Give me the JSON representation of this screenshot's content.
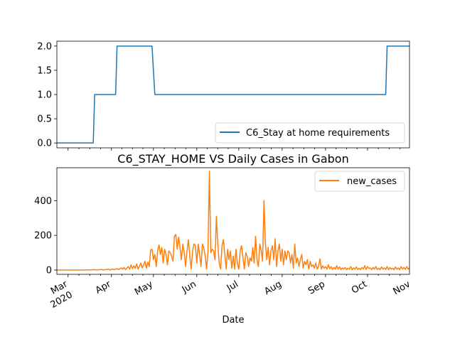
{
  "chart_data": [
    {
      "type": "line",
      "title": "",
      "xlabel": "",
      "ylabel": "",
      "x_range": [
        "2020-02-22",
        "2020-10-31"
      ],
      "ylim": [
        -0.1,
        2.1
      ],
      "yticks": [
        "0.0",
        "0.5",
        "1.0",
        "1.5",
        "2.0"
      ],
      "grid": false,
      "legend_position": "lower-right",
      "series": [
        {
          "name": "C6_Stay at home requirements",
          "color": "#1f77b4",
          "points": [
            [
              "2020-02-22",
              0
            ],
            [
              "2020-03-19",
              0
            ],
            [
              "2020-03-20",
              1
            ],
            [
              "2020-04-04",
              1
            ],
            [
              "2020-04-05",
              2
            ],
            [
              "2020-04-30",
              2
            ],
            [
              "2020-05-02",
              1
            ],
            [
              "2020-10-14",
              1
            ],
            [
              "2020-10-15",
              2
            ],
            [
              "2020-10-31",
              2
            ]
          ]
        }
      ]
    },
    {
      "type": "line",
      "title": "C6_STAY_HOME VS Daily Cases in Gabon",
      "xlabel": "Date",
      "ylabel": "",
      "x_range": [
        "2020-02-22",
        "2020-10-31"
      ],
      "ylim": [
        -25,
        590
      ],
      "yticks": [
        "0",
        "200",
        "400"
      ],
      "xticks": [
        {
          "date": "2020-03-01",
          "label": "Mar",
          "sublabel": "2020"
        },
        {
          "date": "2020-04-01",
          "label": "Apr"
        },
        {
          "date": "2020-05-01",
          "label": "May"
        },
        {
          "date": "2020-06-01",
          "label": "Jun"
        },
        {
          "date": "2020-07-01",
          "label": "Jul"
        },
        {
          "date": "2020-08-01",
          "label": "Aug"
        },
        {
          "date": "2020-09-01",
          "label": "Sep"
        },
        {
          "date": "2020-10-01",
          "label": "Oct"
        },
        {
          "date": "2020-11-01",
          "label": "Nov"
        }
      ],
      "grid": false,
      "legend_position": "upper-right",
      "series": [
        {
          "name": "new_cases",
          "color": "#ff7f0e",
          "points": [
            [
              "2020-02-22",
              0
            ],
            [
              "2020-03-05",
              0
            ],
            [
              "2020-03-12",
              0
            ],
            [
              "2020-03-15",
              1
            ],
            [
              "2020-03-16",
              0
            ],
            [
              "2020-03-20",
              2
            ],
            [
              "2020-03-21",
              0
            ],
            [
              "2020-03-25",
              3
            ],
            [
              "2020-03-26",
              0
            ],
            [
              "2020-03-30",
              5
            ],
            [
              "2020-03-31",
              0
            ],
            [
              "2020-04-02",
              6
            ],
            [
              "2020-04-03",
              2
            ],
            [
              "2020-04-05",
              8
            ],
            [
              "2020-04-06",
              3
            ],
            [
              "2020-04-08",
              12
            ],
            [
              "2020-04-09",
              5
            ],
            [
              "2020-04-10",
              15
            ],
            [
              "2020-04-11",
              2
            ],
            [
              "2020-04-13",
              20
            ],
            [
              "2020-04-14",
              5
            ],
            [
              "2020-04-15",
              30
            ],
            [
              "2020-04-16",
              8
            ],
            [
              "2020-04-17",
              25
            ],
            [
              "2020-04-18",
              10
            ],
            [
              "2020-04-19",
              35
            ],
            [
              "2020-04-20",
              5
            ],
            [
              "2020-04-22",
              40
            ],
            [
              "2020-04-23",
              12
            ],
            [
              "2020-04-24",
              30
            ],
            [
              "2020-04-25",
              50
            ],
            [
              "2020-04-26",
              10
            ],
            [
              "2020-04-27",
              45
            ],
            [
              "2020-04-28",
              20
            ],
            [
              "2020-04-29",
              115
            ],
            [
              "2020-04-30",
              120
            ],
            [
              "2020-05-01",
              60
            ],
            [
              "2020-05-02",
              90
            ],
            [
              "2020-05-03",
              20
            ],
            [
              "2020-05-04",
              110
            ],
            [
              "2020-05-05",
              145
            ],
            [
              "2020-05-06",
              90
            ],
            [
              "2020-05-07",
              130
            ],
            [
              "2020-05-08",
              40
            ],
            [
              "2020-05-09",
              120
            ],
            [
              "2020-05-10",
              90
            ],
            [
              "2020-05-11",
              30
            ],
            [
              "2020-05-12",
              110
            ],
            [
              "2020-05-13",
              100
            ],
            [
              "2020-05-14",
              80
            ],
            [
              "2020-05-15",
              50
            ],
            [
              "2020-05-16",
              195
            ],
            [
              "2020-05-17",
              205
            ],
            [
              "2020-05-18",
              120
            ],
            [
              "2020-05-19",
              190
            ],
            [
              "2020-05-20",
              130
            ],
            [
              "2020-05-21",
              60
            ],
            [
              "2020-05-22",
              150
            ],
            [
              "2020-05-23",
              100
            ],
            [
              "2020-05-24",
              20
            ],
            [
              "2020-05-25",
              110
            ],
            [
              "2020-05-26",
              175
            ],
            [
              "2020-05-27",
              80
            ],
            [
              "2020-05-28",
              5
            ],
            [
              "2020-05-29",
              110
            ],
            [
              "2020-05-30",
              150
            ],
            [
              "2020-05-31",
              140
            ],
            [
              "2020-06-01",
              40
            ],
            [
              "2020-06-02",
              150
            ],
            [
              "2020-06-03",
              90
            ],
            [
              "2020-06-04",
              20
            ],
            [
              "2020-06-05",
              150
            ],
            [
              "2020-06-06",
              130
            ],
            [
              "2020-06-07",
              80
            ],
            [
              "2020-06-08",
              5
            ],
            [
              "2020-06-09",
              110
            ],
            [
              "2020-06-10",
              570
            ],
            [
              "2020-06-11",
              100
            ],
            [
              "2020-06-12",
              120
            ],
            [
              "2020-06-13",
              110
            ],
            [
              "2020-06-14",
              60
            ],
            [
              "2020-06-15",
              310
            ],
            [
              "2020-06-16",
              150
            ],
            [
              "2020-06-17",
              40
            ],
            [
              "2020-06-18",
              5
            ],
            [
              "2020-06-19",
              140
            ],
            [
              "2020-06-20",
              175
            ],
            [
              "2020-06-21",
              90
            ],
            [
              "2020-06-22",
              5
            ],
            [
              "2020-06-23",
              120
            ],
            [
              "2020-06-24",
              60
            ],
            [
              "2020-06-25",
              110
            ],
            [
              "2020-06-26",
              10
            ],
            [
              "2020-06-27",
              80
            ],
            [
              "2020-06-28",
              5
            ],
            [
              "2020-06-29",
              120
            ],
            [
              "2020-06-30",
              40
            ],
            [
              "2020-07-01",
              5
            ],
            [
              "2020-07-02",
              110
            ],
            [
              "2020-07-03",
              140
            ],
            [
              "2020-07-04",
              70
            ],
            [
              "2020-07-05",
              5
            ],
            [
              "2020-07-06",
              100
            ],
            [
              "2020-07-07",
              80
            ],
            [
              "2020-07-08",
              20
            ],
            [
              "2020-07-09",
              70
            ],
            [
              "2020-07-10",
              50
            ],
            [
              "2020-07-11",
              130
            ],
            [
              "2020-07-12",
              40
            ],
            [
              "2020-07-13",
              195
            ],
            [
              "2020-07-14",
              60
            ],
            [
              "2020-07-15",
              20
            ],
            [
              "2020-07-16",
              150
            ],
            [
              "2020-07-17",
              110
            ],
            [
              "2020-07-18",
              50
            ],
            [
              "2020-07-19",
              400
            ],
            [
              "2020-07-20",
              160
            ],
            [
              "2020-07-21",
              60
            ],
            [
              "2020-07-22",
              130
            ],
            [
              "2020-07-23",
              30
            ],
            [
              "2020-07-24",
              110
            ],
            [
              "2020-07-25",
              140
            ],
            [
              "2020-07-26",
              60
            ],
            [
              "2020-07-27",
              180
            ],
            [
              "2020-07-28",
              20
            ],
            [
              "2020-07-29",
              110
            ],
            [
              "2020-07-30",
              150
            ],
            [
              "2020-07-31",
              50
            ],
            [
              "2020-08-01",
              120
            ],
            [
              "2020-08-02",
              30
            ],
            [
              "2020-08-03",
              110
            ],
            [
              "2020-08-04",
              60
            ],
            [
              "2020-08-05",
              110
            ],
            [
              "2020-08-06",
              100
            ],
            [
              "2020-08-07",
              40
            ],
            [
              "2020-08-08",
              90
            ],
            [
              "2020-08-09",
              10
            ],
            [
              "2020-08-10",
              150
            ],
            [
              "2020-08-11",
              40
            ],
            [
              "2020-08-12",
              70
            ],
            [
              "2020-08-13",
              20
            ],
            [
              "2020-08-14",
              60
            ],
            [
              "2020-08-15",
              90
            ],
            [
              "2020-08-16",
              10
            ],
            [
              "2020-08-17",
              50
            ],
            [
              "2020-08-18",
              30
            ],
            [
              "2020-08-19",
              60
            ],
            [
              "2020-08-20",
              5
            ],
            [
              "2020-08-21",
              50
            ],
            [
              "2020-08-22",
              20
            ],
            [
              "2020-08-23",
              30
            ],
            [
              "2020-08-24",
              10
            ],
            [
              "2020-08-25",
              40
            ],
            [
              "2020-08-26",
              5
            ],
            [
              "2020-08-27",
              20
            ],
            [
              "2020-08-28",
              65
            ],
            [
              "2020-08-29",
              5
            ],
            [
              "2020-08-30",
              25
            ],
            [
              "2020-08-31",
              10
            ],
            [
              "2020-09-01",
              20
            ],
            [
              "2020-09-02",
              5
            ],
            [
              "2020-09-03",
              30
            ],
            [
              "2020-09-04",
              8
            ],
            [
              "2020-09-05",
              20
            ],
            [
              "2020-09-06",
              3
            ],
            [
              "2020-09-07",
              15
            ],
            [
              "2020-09-08",
              5
            ],
            [
              "2020-09-09",
              25
            ],
            [
              "2020-09-10",
              5
            ],
            [
              "2020-09-11",
              18
            ],
            [
              "2020-09-12",
              2
            ],
            [
              "2020-09-13",
              12
            ],
            [
              "2020-09-14",
              5
            ],
            [
              "2020-09-15",
              15
            ],
            [
              "2020-09-16",
              2
            ],
            [
              "2020-09-17",
              10
            ],
            [
              "2020-09-18",
              4
            ],
            [
              "2020-09-19",
              20
            ],
            [
              "2020-09-20",
              2
            ],
            [
              "2020-09-21",
              12
            ],
            [
              "2020-09-22",
              5
            ],
            [
              "2020-09-23",
              18
            ],
            [
              "2020-09-24",
              3
            ],
            [
              "2020-09-25",
              10
            ],
            [
              "2020-09-26",
              2
            ],
            [
              "2020-09-27",
              15
            ],
            [
              "2020-09-28",
              5
            ],
            [
              "2020-09-29",
              25
            ],
            [
              "2020-09-30",
              3
            ],
            [
              "2020-10-01",
              20
            ],
            [
              "2020-10-02",
              8
            ],
            [
              "2020-10-03",
              12
            ],
            [
              "2020-10-04",
              2
            ],
            [
              "2020-10-05",
              15
            ],
            [
              "2020-10-06",
              5
            ],
            [
              "2020-10-07",
              20
            ],
            [
              "2020-10-08",
              3
            ],
            [
              "2020-10-09",
              10
            ],
            [
              "2020-10-10",
              2
            ],
            [
              "2020-10-11",
              18
            ],
            [
              "2020-10-12",
              5
            ],
            [
              "2020-10-13",
              12
            ],
            [
              "2020-10-14",
              3
            ],
            [
              "2020-10-15",
              20
            ],
            [
              "2020-10-16",
              2
            ],
            [
              "2020-10-17",
              15
            ],
            [
              "2020-10-18",
              5
            ],
            [
              "2020-10-19",
              10
            ],
            [
              "2020-10-20",
              2
            ],
            [
              "2020-10-21",
              18
            ],
            [
              "2020-10-22",
              4
            ],
            [
              "2020-10-23",
              12
            ],
            [
              "2020-10-24",
              2
            ],
            [
              "2020-10-25",
              20
            ],
            [
              "2020-10-26",
              5
            ],
            [
              "2020-10-27",
              15
            ],
            [
              "2020-10-28",
              3
            ],
            [
              "2020-10-29",
              20
            ],
            [
              "2020-10-30",
              5
            ],
            [
              "2020-10-31",
              12
            ]
          ]
        }
      ]
    }
  ]
}
